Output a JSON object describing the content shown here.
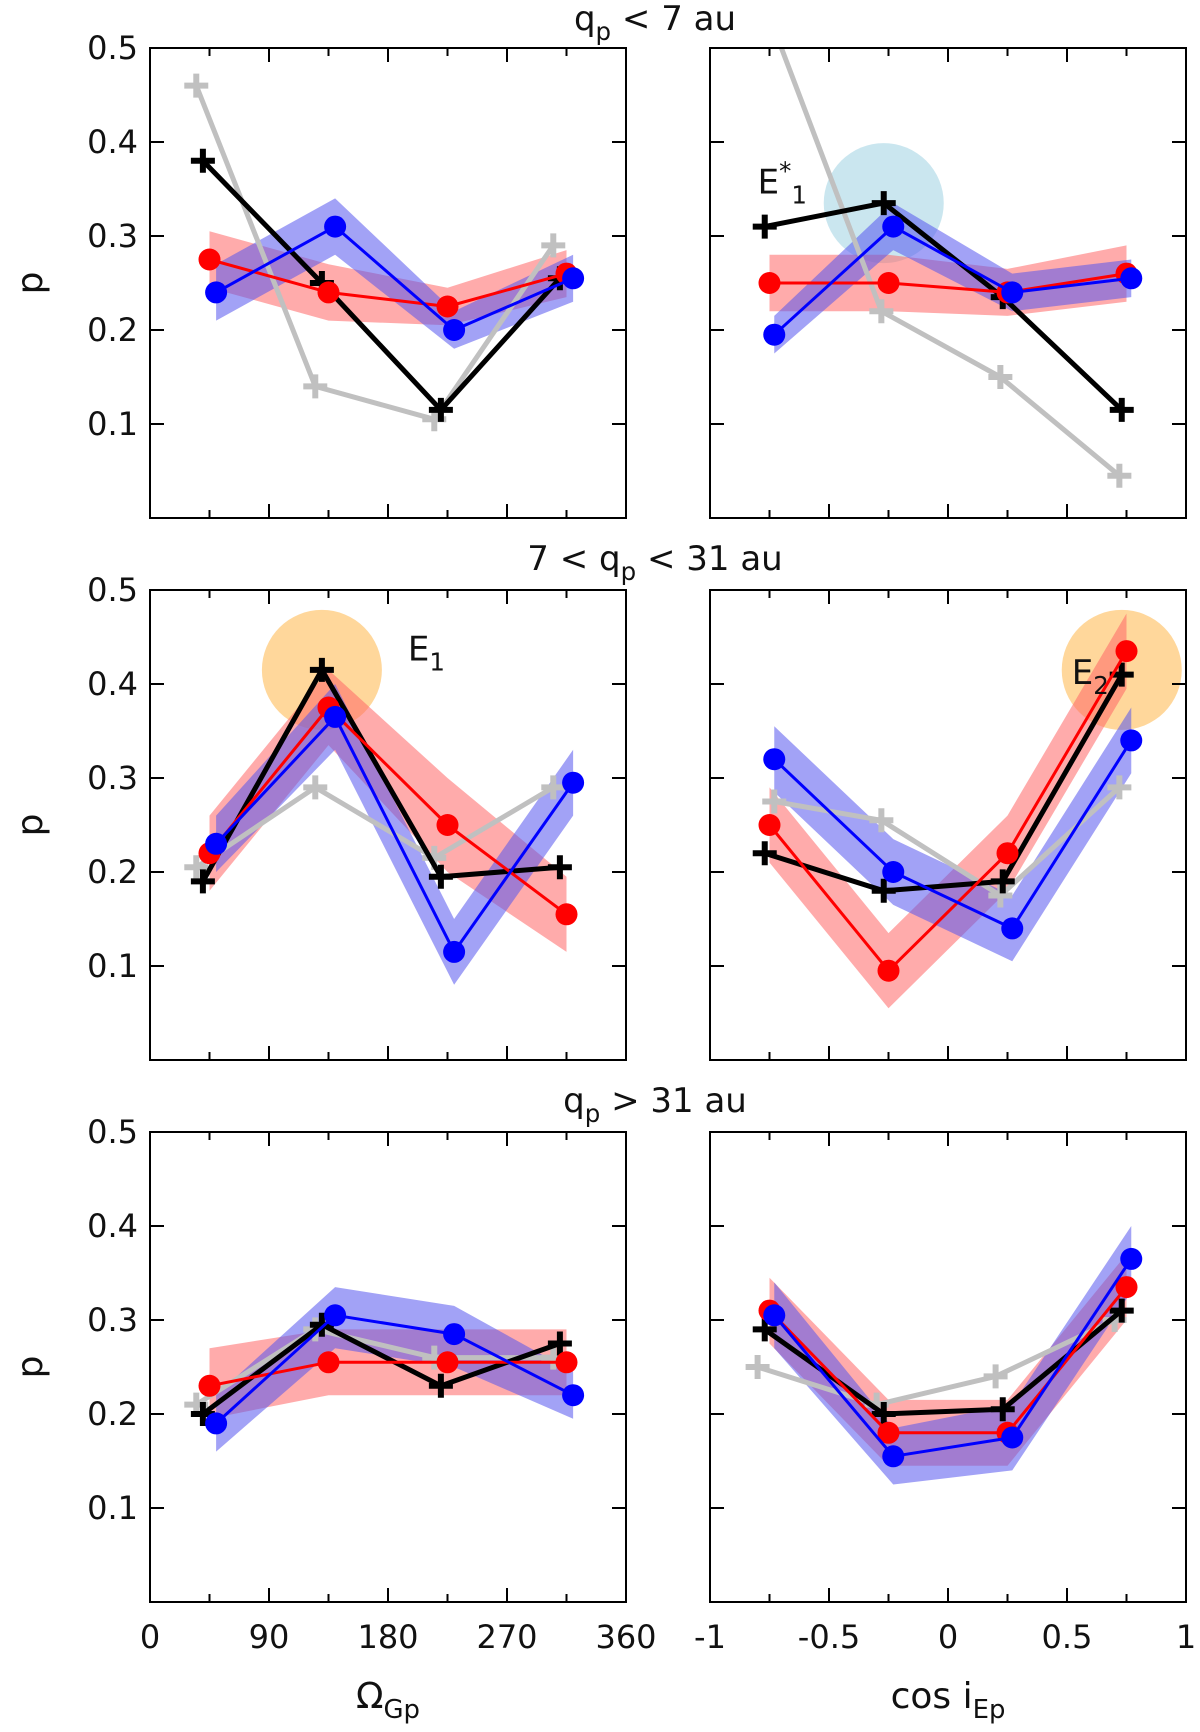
{
  "row_titles": [
    {
      "base": "q",
      "sub": "p",
      "rest": " < 7 au"
    },
    {
      "pre": "7 < ",
      "base": "q",
      "sub": "p",
      "rest": " < 31 au"
    },
    {
      "base": "q",
      "sub": "p",
      "rest": " > 31 au"
    }
  ],
  "ylabel": "p",
  "left_xlabel": {
    "base": "Ω",
    "sub": "Gp"
  },
  "right_xlabel": {
    "base": "cos i",
    "sub": "Ep"
  },
  "left_xticks": [
    "0",
    "90",
    "180",
    "270",
    "360"
  ],
  "right_xticks": [
    "-1",
    "-0.5",
    "0",
    "0.5",
    "1"
  ],
  "yticks": [
    "0.1",
    "0.2",
    "0.3",
    "0.4",
    "0.5"
  ],
  "annotations": {
    "e1star": {
      "base": "E",
      "sup": "*",
      "sub": "1"
    },
    "e1": {
      "base": "E",
      "sub": "1"
    },
    "e2": {
      "base": "E",
      "sub": "2"
    }
  },
  "colors": {
    "gray": "#c0c0c0",
    "black": "#000000",
    "red": "#ff0000",
    "blue": "#0000ff",
    "red_band": "#ff6666",
    "blue_band": "#5555ee",
    "highlight_blue": "#add8e6",
    "highlight_orange": "#ffc266"
  },
  "chart_data": [
    {
      "type": "line",
      "row": 0,
      "col": 0,
      "xlim": [
        0,
        360
      ],
      "ylim": [
        0,
        0.5
      ],
      "series": [
        {
          "color": "gray",
          "marker": "plus",
          "x": [
            35,
            125,
            215,
            305
          ],
          "y": [
            0.46,
            0.14,
            0.105,
            0.29
          ]
        },
        {
          "color": "black",
          "marker": "plus",
          "x": [
            40,
            130,
            220,
            310
          ],
          "y": [
            0.38,
            0.25,
            0.115,
            0.255
          ]
        },
        {
          "color": "red",
          "marker": "circle",
          "x": [
            45,
            135,
            225,
            315
          ],
          "y": [
            0.275,
            0.24,
            0.225,
            0.26
          ],
          "band": [
            [
              0.245,
              0.305
            ],
            [
              0.21,
              0.27
            ],
            [
              0.205,
              0.245
            ],
            [
              0.235,
              0.285
            ]
          ]
        },
        {
          "color": "blue",
          "marker": "circle",
          "x": [
            50,
            140,
            230,
            320
          ],
          "y": [
            0.24,
            0.31,
            0.2,
            0.255
          ],
          "band": [
            [
              0.21,
              0.27
            ],
            [
              0.28,
              0.34
            ],
            [
              0.18,
              0.22
            ],
            [
              0.23,
              0.28
            ]
          ]
        }
      ]
    },
    {
      "type": "line",
      "row": 0,
      "col": 1,
      "xlim": [
        -1,
        1
      ],
      "ylim": [
        0,
        0.5
      ],
      "highlight": {
        "x": -0.27,
        "y": 0.335,
        "color": "highlight_blue",
        "label": "e1star",
        "label_x": -0.8,
        "label_y": 0.345
      },
      "series": [
        {
          "color": "gray",
          "marker": "plus",
          "x": [
            -0.73,
            -0.28,
            0.22,
            0.72
          ],
          "y": [
            0.52,
            0.22,
            0.15,
            0.045
          ]
        },
        {
          "color": "black",
          "marker": "plus",
          "x": [
            -0.77,
            -0.27,
            0.23,
            0.73
          ],
          "y": [
            0.31,
            0.335,
            0.235,
            0.115
          ]
        },
        {
          "color": "red",
          "marker": "circle",
          "x": [
            -0.75,
            -0.25,
            0.25,
            0.75
          ],
          "y": [
            0.25,
            0.25,
            0.24,
            0.26
          ],
          "band": [
            [
              0.22,
              0.28
            ],
            [
              0.22,
              0.28
            ],
            [
              0.215,
              0.265
            ],
            [
              0.23,
              0.29
            ]
          ]
        },
        {
          "color": "blue",
          "marker": "circle",
          "x": [
            -0.73,
            -0.23,
            0.27,
            0.77
          ],
          "y": [
            0.195,
            0.31,
            0.24,
            0.255
          ],
          "band": [
            [
              0.175,
              0.215
            ],
            [
              0.285,
              0.335
            ],
            [
              0.22,
              0.26
            ],
            [
              0.235,
              0.275
            ]
          ]
        }
      ]
    },
    {
      "type": "line",
      "row": 1,
      "col": 0,
      "xlim": [
        0,
        360
      ],
      "ylim": [
        0,
        0.5
      ],
      "highlight": {
        "x": 130,
        "y": 0.415,
        "color": "highlight_orange",
        "label": "e1",
        "label_x": 195,
        "label_y": 0.425
      },
      "series": [
        {
          "color": "gray",
          "marker": "plus",
          "x": [
            35,
            125,
            215,
            305
          ],
          "y": [
            0.205,
            0.29,
            0.215,
            0.29
          ]
        },
        {
          "color": "black",
          "marker": "plus",
          "x": [
            40,
            130,
            220,
            310
          ],
          "y": [
            0.19,
            0.415,
            0.195,
            0.205
          ]
        },
        {
          "color": "red",
          "marker": "circle",
          "x": [
            45,
            135,
            225,
            315
          ],
          "y": [
            0.22,
            0.375,
            0.25,
            0.155
          ],
          "band": [
            [
              0.18,
              0.26
            ],
            [
              0.335,
              0.415
            ],
            [
              0.2,
              0.3
            ],
            [
              0.115,
              0.195
            ]
          ]
        },
        {
          "color": "blue",
          "marker": "circle",
          "x": [
            50,
            140,
            230,
            320
          ],
          "y": [
            0.23,
            0.365,
            0.115,
            0.295
          ],
          "band": [
            [
              0.2,
              0.26
            ],
            [
              0.33,
              0.4
            ],
            [
              0.08,
              0.15
            ],
            [
              0.26,
              0.33
            ]
          ]
        }
      ]
    },
    {
      "type": "line",
      "row": 1,
      "col": 1,
      "xlim": [
        -1,
        1
      ],
      "ylim": [
        0,
        0.5
      ],
      "highlight": {
        "x": 0.73,
        "y": 0.415,
        "color": "highlight_orange",
        "label": "e2",
        "label_x": 0.52,
        "label_y": 0.4
      },
      "series": [
        {
          "color": "gray",
          "marker": "plus",
          "x": [
            -0.73,
            -0.28,
            0.22,
            0.72
          ],
          "y": [
            0.275,
            0.255,
            0.175,
            0.29
          ]
        },
        {
          "color": "black",
          "marker": "plus",
          "x": [
            -0.77,
            -0.27,
            0.23,
            0.73
          ],
          "y": [
            0.22,
            0.18,
            0.19,
            0.41
          ]
        },
        {
          "color": "red",
          "marker": "circle",
          "x": [
            -0.75,
            -0.25,
            0.25,
            0.75
          ],
          "y": [
            0.25,
            0.095,
            0.22,
            0.435
          ],
          "band": [
            [
              0.21,
              0.29
            ],
            [
              0.055,
              0.135
            ],
            [
              0.18,
              0.26
            ],
            [
              0.395,
              0.475
            ]
          ]
        },
        {
          "color": "blue",
          "marker": "circle",
          "x": [
            -0.73,
            -0.23,
            0.27,
            0.77
          ],
          "y": [
            0.32,
            0.2,
            0.14,
            0.34
          ],
          "band": [
            [
              0.285,
              0.355
            ],
            [
              0.165,
              0.235
            ],
            [
              0.105,
              0.175
            ],
            [
              0.305,
              0.375
            ]
          ]
        }
      ]
    },
    {
      "type": "line",
      "row": 2,
      "col": 0,
      "xlim": [
        0,
        360
      ],
      "ylim": [
        0,
        0.5
      ],
      "series": [
        {
          "color": "gray",
          "marker": "plus",
          "x": [
            35,
            125,
            215,
            305
          ],
          "y": [
            0.21,
            0.29,
            0.26,
            0.26
          ]
        },
        {
          "color": "black",
          "marker": "plus",
          "x": [
            40,
            130,
            220,
            310
          ],
          "y": [
            0.2,
            0.295,
            0.23,
            0.275
          ]
        },
        {
          "color": "red",
          "marker": "circle",
          "x": [
            45,
            135,
            225,
            315
          ],
          "y": [
            0.23,
            0.255,
            0.255,
            0.255
          ],
          "band": [
            [
              0.195,
              0.27
            ],
            [
              0.22,
              0.29
            ],
            [
              0.22,
              0.29
            ],
            [
              0.22,
              0.29
            ]
          ]
        },
        {
          "color": "blue",
          "marker": "circle",
          "x": [
            50,
            140,
            230,
            320
          ],
          "y": [
            0.19,
            0.305,
            0.285,
            0.22
          ],
          "band": [
            [
              0.16,
              0.22
            ],
            [
              0.27,
              0.335
            ],
            [
              0.25,
              0.315
            ],
            [
              0.195,
              0.245
            ]
          ]
        }
      ]
    },
    {
      "type": "line",
      "row": 2,
      "col": 1,
      "xlim": [
        -1,
        1
      ],
      "ylim": [
        0,
        0.5
      ],
      "series": [
        {
          "color": "gray",
          "marker": "plus",
          "x": [
            -0.8,
            -0.3,
            0.2,
            0.7
          ],
          "y": [
            0.25,
            0.21,
            0.24,
            0.3
          ]
        },
        {
          "color": "black",
          "marker": "plus",
          "x": [
            -0.77,
            -0.27,
            0.23,
            0.73
          ],
          "y": [
            0.29,
            0.2,
            0.205,
            0.31
          ]
        },
        {
          "color": "red",
          "marker": "circle",
          "x": [
            -0.75,
            -0.25,
            0.25,
            0.75
          ],
          "y": [
            0.31,
            0.18,
            0.18,
            0.335
          ],
          "band": [
            [
              0.275,
              0.345
            ],
            [
              0.145,
              0.215
            ],
            [
              0.145,
              0.215
            ],
            [
              0.3,
              0.37
            ]
          ]
        },
        {
          "color": "blue",
          "marker": "circle",
          "x": [
            -0.73,
            -0.23,
            0.27,
            0.77
          ],
          "y": [
            0.305,
            0.155,
            0.175,
            0.365
          ],
          "band": [
            [
              0.27,
              0.34
            ],
            [
              0.125,
              0.185
            ],
            [
              0.14,
              0.21
            ],
            [
              0.33,
              0.4
            ]
          ]
        }
      ]
    }
  ]
}
